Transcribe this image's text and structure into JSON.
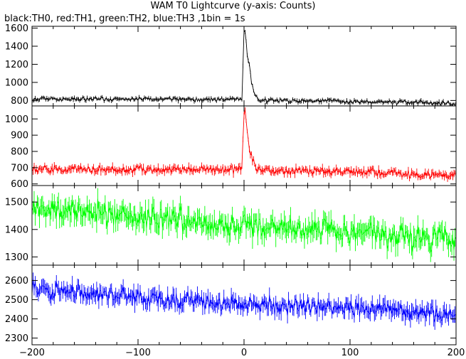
{
  "title": "WAM T0 Lightcurve (y-axis: Counts)",
  "subtitle": "black:TH0, red:TH1, green:TH2, blue:TH3 ,1bin = 1s",
  "chart_data": [
    {
      "type": "line",
      "name": "TH0",
      "color": "#000000",
      "xlim": [
        -200,
        200
      ],
      "ylim": [
        740,
        1620
      ],
      "yticks": [
        800,
        1000,
        1200,
        1400,
        1600
      ],
      "baseline": [
        [
          -200,
          818
        ],
        [
          -100,
          815
        ],
        [
          -10,
          812
        ],
        [
          200,
          768
        ]
      ],
      "noise": 22,
      "peaks": [
        [
          -2,
          780
        ],
        [
          0,
          1590
        ],
        [
          1,
          1560
        ],
        [
          2,
          1450
        ],
        [
          3,
          1300
        ],
        [
          5,
          1200
        ],
        [
          7,
          1000
        ],
        [
          10,
          860
        ],
        [
          15,
          815
        ]
      ],
      "show_x_labels": false
    },
    {
      "type": "line",
      "name": "TH1",
      "color": "#ff0000",
      "xlim": [
        -200,
        200
      ],
      "ylim": [
        590,
        1080
      ],
      "yticks": [
        600,
        700,
        800,
        900,
        1000
      ],
      "baseline": [
        [
          -200,
          690
        ],
        [
          -100,
          690
        ],
        [
          0,
          688
        ],
        [
          100,
          672
        ],
        [
          200,
          650
        ]
      ],
      "noise": 22,
      "peaks": [
        [
          -2,
          690
        ],
        [
          0,
          1040
        ],
        [
          1,
          1060
        ],
        [
          2,
          1000
        ],
        [
          3,
          930
        ],
        [
          5,
          820
        ],
        [
          7,
          770
        ],
        [
          10,
          710
        ],
        [
          15,
          690
        ]
      ],
      "show_x_labels": false
    },
    {
      "type": "line",
      "name": "TH2",
      "color": "#00ff00",
      "xlim": [
        -200,
        200
      ],
      "ylim": [
        1270,
        1560
      ],
      "yticks": [
        1300,
        1400,
        1500
      ],
      "baseline": [
        [
          -200,
          1480
        ],
        [
          -100,
          1445
        ],
        [
          0,
          1410
        ],
        [
          100,
          1395
        ],
        [
          200,
          1355
        ]
      ],
      "noise": 38,
      "peaks": [],
      "show_x_labels": false
    },
    {
      "type": "line",
      "name": "TH3",
      "color": "#0000ff",
      "xlim": [
        -200,
        200
      ],
      "ylim": [
        2265,
        2680
      ],
      "yticks": [
        2300,
        2400,
        2500,
        2600
      ],
      "baseline": [
        [
          -200,
          2550
        ],
        [
          -100,
          2510
        ],
        [
          0,
          2480
        ],
        [
          100,
          2455
        ],
        [
          200,
          2420
        ]
      ],
      "noise": 40,
      "peaks": [],
      "show_x_labels": true,
      "xticks": [
        -200,
        -100,
        0,
        100,
        200
      ]
    }
  ]
}
